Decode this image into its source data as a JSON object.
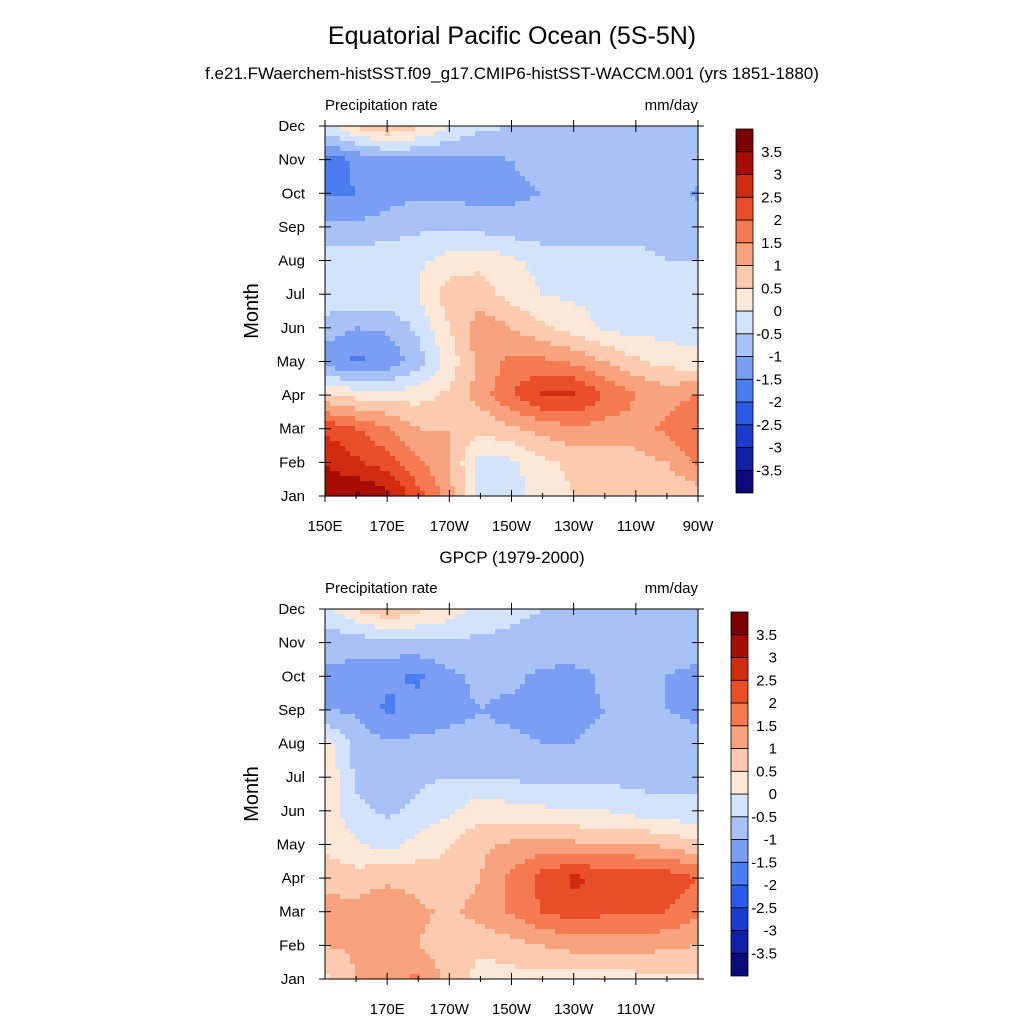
{
  "main_title": "Equatorial Pacific Ocean (5S-5N)",
  "subtitle": "f.e21.FWaerchem-histSST.f09_g17.CMIP6-histSST-WACCM.001 (yrs 1851-1880)",
  "colorbar": {
    "levels": [
      -3.5,
      -3,
      -2.5,
      -2,
      -1.5,
      -1,
      -0.5,
      0,
      0.5,
      1,
      1.5,
      2,
      2.5,
      3,
      3.5
    ],
    "colors": [
      "#0a0a78",
      "#0f1fa8",
      "#1a3ad0",
      "#2b5ae8",
      "#4a7ef0",
      "#7b9ef5",
      "#a8c2f8",
      "#d2e3fb",
      "#fde8d8",
      "#fccaae",
      "#f9a37e",
      "#f57a52",
      "#ea4e28",
      "#d12c10",
      "#a80d04",
      "#780000"
    ]
  },
  "chart_data": [
    {
      "type": "heatmap",
      "title": "",
      "left_label": "Precipitation rate",
      "right_label": "mm/day",
      "ylabel": "Month",
      "xlabel": "",
      "x_ticks": [
        "150E",
        "170E",
        "170W",
        "150W",
        "130W",
        "110W",
        "90W"
      ],
      "x_tick_values": [
        150,
        170,
        190,
        210,
        230,
        250,
        270
      ],
      "y_ticks": [
        "Jan",
        "Feb",
        "Mar",
        "Apr",
        "May",
        "Jun",
        "Jul",
        "Aug",
        "Sep",
        "Oct",
        "Nov",
        "Dec"
      ],
      "xlim": [
        150,
        270
      ],
      "units": "mm/day",
      "lon": [
        150,
        160,
        170,
        180,
        190,
        200,
        210,
        220,
        230,
        240,
        250,
        260,
        270
      ],
      "z": [
        [
          3.2,
          3.6,
          3.2,
          2.2,
          1.2,
          -0.3,
          -0.3,
          0.3,
          0.5,
          0.5,
          0.6,
          0.6,
          0.7
        ],
        [
          3.0,
          2.6,
          2.2,
          1.6,
          1.0,
          -0.2,
          -0.1,
          0.4,
          0.6,
          0.7,
          0.8,
          1.0,
          1.6
        ],
        [
          2.4,
          2.0,
          1.6,
          1.0,
          1.0,
          0.6,
          0.9,
          1.2,
          1.4,
          1.3,
          1.3,
          1.6,
          2.0
        ],
        [
          0.6,
          0.3,
          0.2,
          0.3,
          0.6,
          1.2,
          2.0,
          2.6,
          2.6,
          2.0,
          1.5,
          1.3,
          1.5
        ],
        [
          -1.3,
          -1.6,
          -1.4,
          -0.7,
          0.2,
          1.2,
          1.6,
          1.6,
          1.4,
          1.0,
          0.6,
          0.3,
          0.2
        ],
        [
          -0.7,
          -1.0,
          -0.9,
          -0.4,
          0.5,
          1.3,
          1.0,
          0.6,
          0.3,
          -0.1,
          -0.2,
          -0.2,
          -0.3
        ],
        [
          -0.2,
          -0.1,
          -0.1,
          0.0,
          0.8,
          0.7,
          0.3,
          0.0,
          -0.1,
          -0.2,
          -0.3,
          -0.3,
          -0.4
        ],
        [
          -0.2,
          -0.2,
          -0.1,
          -0.1,
          0.2,
          0.4,
          0.1,
          -0.2,
          -0.3,
          -0.4,
          -0.4,
          -0.5,
          -0.5
        ],
        [
          -0.9,
          -0.9,
          -0.8,
          -0.6,
          -0.6,
          -0.7,
          -0.8,
          -0.8,
          -0.7,
          -0.6,
          -0.6,
          -0.7,
          -0.8
        ],
        [
          -1.6,
          -1.5,
          -1.2,
          -1.1,
          -1.1,
          -1.2,
          -1.1,
          -1.0,
          -0.7,
          -0.6,
          -0.6,
          -0.7,
          -1.1
        ],
        [
          -1.8,
          -1.4,
          -1.1,
          -1.1,
          -1.1,
          -1.1,
          -1.0,
          -0.8,
          -0.7,
          -0.6,
          -0.6,
          -0.6,
          -0.8
        ],
        [
          -0.2,
          0.6,
          1.0,
          0.6,
          0.0,
          -0.4,
          -0.5,
          -0.5,
          -0.5,
          -0.5,
          -0.5,
          -0.5,
          -0.6
        ]
      ]
    },
    {
      "type": "heatmap",
      "title": "GPCP (1979-2000)",
      "left_label": "Precipitation rate",
      "right_label": "mm/day",
      "ylabel": "Month",
      "xlabel": "",
      "x_ticks": [
        "170E",
        "170W",
        "150W",
        "130W",
        "110W"
      ],
      "x_tick_values": [
        170,
        190,
        210,
        230,
        250
      ],
      "y_ticks": [
        "Jan",
        "Feb",
        "Mar",
        "Apr",
        "May",
        "Jun",
        "Jul",
        "Aug",
        "Sep",
        "Oct",
        "Nov",
        "Dec"
      ],
      "xlim": [
        150,
        270
      ],
      "units": "mm/day",
      "lon": [
        150,
        160,
        170,
        180,
        190,
        200,
        210,
        220,
        230,
        240,
        250,
        260,
        270
      ],
      "z": [
        [
          0.4,
          1.0,
          1.4,
          1.6,
          0.8,
          0.3,
          0.3,
          0.3,
          0.2,
          0.2,
          0.3,
          0.4,
          0.4
        ],
        [
          1.0,
          1.1,
          1.3,
          1.0,
          0.7,
          0.6,
          0.8,
          1.0,
          1.2,
          1.2,
          1.2,
          1.1,
          1.0
        ],
        [
          1.2,
          1.2,
          1.4,
          1.1,
          0.9,
          1.2,
          1.6,
          2.0,
          2.3,
          2.1,
          2.1,
          2.0,
          1.6
        ],
        [
          0.8,
          0.7,
          0.9,
          0.8,
          0.6,
          1.0,
          1.6,
          2.2,
          2.6,
          2.4,
          2.4,
          2.3,
          2.0
        ],
        [
          0.4,
          0.1,
          -0.2,
          0.2,
          0.5,
          0.9,
          1.1,
          1.2,
          1.1,
          1.0,
          1.0,
          0.9,
          0.6
        ],
        [
          0.3,
          -0.4,
          -0.6,
          -0.4,
          -0.1,
          0.3,
          0.2,
          0.1,
          0.0,
          0.0,
          -0.2,
          -0.3,
          -0.4
        ],
        [
          0.5,
          -0.6,
          -0.7,
          -0.6,
          -0.5,
          -0.5,
          -0.6,
          -0.6,
          -0.6,
          -0.6,
          -0.7,
          -0.7,
          -0.6
        ],
        [
          0.2,
          -0.7,
          -0.9,
          -0.9,
          -0.9,
          -0.9,
          -0.9,
          -1.0,
          -1.0,
          -0.9,
          -0.8,
          -0.8,
          -0.9
        ],
        [
          -1.0,
          -1.1,
          -1.6,
          -1.3,
          -1.1,
          -1.0,
          -1.1,
          -1.2,
          -1.1,
          -1.0,
          -0.8,
          -1.0,
          -1.1
        ],
        [
          -1.1,
          -1.2,
          -1.4,
          -1.6,
          -1.1,
          -0.9,
          -0.9,
          -1.1,
          -1.2,
          -0.9,
          -0.7,
          -1.0,
          -1.2
        ],
        [
          -0.8,
          -0.8,
          -0.7,
          -0.6,
          -0.6,
          -0.6,
          -0.6,
          -0.7,
          -0.6,
          -0.6,
          -0.5,
          -0.6,
          -0.7
        ],
        [
          -0.2,
          0.5,
          1.0,
          0.6,
          0.3,
          -0.2,
          -0.4,
          -0.5,
          -0.5,
          -0.5,
          -0.5,
          -0.5,
          -0.5
        ]
      ]
    }
  ]
}
